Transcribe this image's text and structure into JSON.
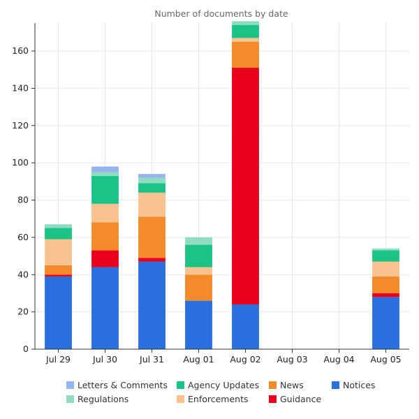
{
  "chart_data": {
    "type": "bar",
    "stacked": true,
    "title": "Number of documents by date",
    "xlabel": "",
    "ylabel": "",
    "ylim": [
      0,
      175
    ],
    "yticks": [
      0,
      20,
      40,
      60,
      80,
      100,
      120,
      140,
      160
    ],
    "grid": true,
    "legend_position": "bottom",
    "categories": [
      "Jul 29",
      "Jul 30",
      "Jul 31",
      "Aug 01",
      "Aug 02",
      "Aug 03",
      "Aug 04",
      "Aug 05"
    ],
    "series": [
      {
        "name": "Notices",
        "color": "#2b6fdf",
        "values": [
          39,
          44,
          47,
          26,
          24,
          0,
          0,
          28
        ]
      },
      {
        "name": "Guidance",
        "color": "#e8001c",
        "values": [
          1,
          9,
          2,
          0,
          127,
          0,
          0,
          2
        ]
      },
      {
        "name": "News",
        "color": "#f48b2a",
        "values": [
          5,
          15,
          22,
          14,
          14,
          0,
          0,
          9
        ]
      },
      {
        "name": "Enforcements",
        "color": "#f8c291",
        "values": [
          14,
          10,
          13,
          4,
          2,
          0,
          0,
          8
        ]
      },
      {
        "name": "Agency Updates",
        "color": "#1dc287",
        "values": [
          6,
          15,
          5,
          12,
          7,
          0,
          0,
          6
        ]
      },
      {
        "name": "Regulations",
        "color": "#8fdcc0",
        "values": [
          2,
          2,
          3,
          4,
          2,
          0,
          0,
          1
        ]
      },
      {
        "name": "Letters & Comments",
        "color": "#94b5ee",
        "values": [
          0,
          3,
          2,
          0,
          0,
          0,
          0,
          0
        ]
      }
    ],
    "legend_order": [
      "Letters & Comments",
      "Agency Updates",
      "News",
      "Notices",
      "Regulations",
      "Enforcements",
      "Guidance"
    ]
  }
}
